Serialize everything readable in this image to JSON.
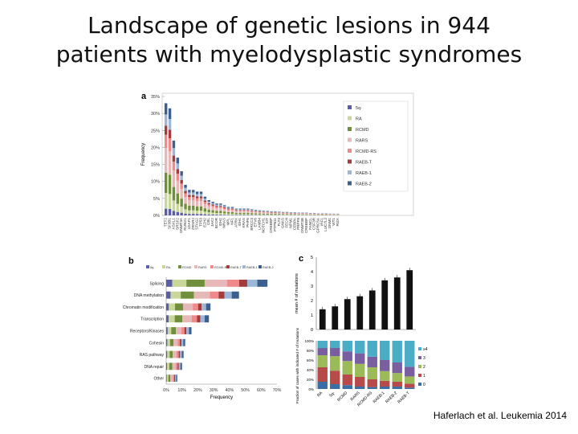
{
  "slide": {
    "title_line1": "Landscape of genetic lesions in 944",
    "title_line2": "patients with myelodysplastic syndromes",
    "caption": "Haferlach et al. Leukemia 2014"
  },
  "colors": {
    "5q-": "#5b5ea6",
    "RA": "#c9d89a",
    "RCMD": "#6f8f3a",
    "RARS": "#e6b8b7",
    "RCMD-RS": "#f08a8a",
    "RAEB-T": "#a23b3b",
    "RAEB-1": "#9db7d9",
    "RAEB-2": "#3b5f8f"
  },
  "chart_data": [
    {
      "panel": "a",
      "type": "bar",
      "stacked": true,
      "ylabel": "Frequency",
      "yticks": [
        "0%",
        "5%",
        "10%",
        "15%",
        "20%",
        "25%",
        "30%",
        "35%"
      ],
      "ylim": [
        0,
        35
      ],
      "legend": [
        "5q-",
        "RA",
        "RCMD",
        "RARS",
        "RCMD-RS",
        "RAEB-T",
        "RAEB-1",
        "RAEB-2"
      ],
      "legend_position": "top-right",
      "categories": [
        "TET2",
        "SF3B1",
        "ASXL1",
        "SRSF2",
        "DNMT3A",
        "RUNX1",
        "U2AF1",
        "ZRSR2",
        "STAG2",
        "TP53",
        "EZH2",
        "CBL",
        "JAK2",
        "BCOR",
        "IDH2",
        "NRAS",
        "MPL",
        "NF1",
        "ATRX",
        "IDH1",
        "KRAS",
        "PHF6",
        "BRCC3",
        "ETV6",
        "LAMB4",
        "NOTCH1",
        "KIT",
        "CREBBP",
        "PTPN11",
        "FLT3",
        "GNAS",
        "FECH",
        "NPM1",
        "CEBPA",
        "PRPF8",
        "DNMT3B",
        "CREBBP",
        "FANCL",
        "CSF3R",
        "GPRC5A",
        "IRF1",
        "LUC7L2",
        "DNM1",
        "WT1",
        "RIZA"
      ],
      "values": [
        33,
        31.5,
        22,
        17,
        13,
        9,
        7.5,
        7.5,
        7,
        7,
        5.5,
        4.5,
        4,
        3.5,
        3.5,
        3,
        2.5,
        2.5,
        2,
        2,
        2,
        2,
        1.8,
        1.6,
        1.5,
        1.4,
        1.3,
        1.2,
        1.2,
        1.1,
        1,
        1,
        0.9,
        0.9,
        0.8,
        0.8,
        0.8,
        0.7,
        0.7,
        0.6,
        0.6,
        0.6,
        0.5,
        0.5,
        0.5
      ]
    },
    {
      "panel": "b",
      "type": "bar",
      "orientation": "horizontal",
      "stacked": true,
      "xlabel": "Frequency",
      "xticks": [
        "0%",
        "10%",
        "20%",
        "30%",
        "40%",
        "50%",
        "60%",
        "70%"
      ],
      "xlim": [
        0,
        70
      ],
      "legend": [
        "5q-",
        "RA",
        "RCMD",
        "RARS",
        "RCMD-RS",
        "RAEB-T",
        "RAEB-1",
        "RAEB-2"
      ],
      "categories": [
        "Splicing",
        "DNA methylation",
        "Chromatin modification",
        "Transcription",
        "Receptors/Kinases",
        "Cohesin",
        "RAS pathway",
        "DNA repair",
        "Other"
      ],
      "totals": [
        64,
        46,
        28,
        27,
        16,
        12,
        11,
        10,
        7
      ]
    },
    {
      "panel": "c-top",
      "type": "bar",
      "ylabel": "mean # of mutations",
      "yticks": [
        "0",
        "1",
        "2",
        "3",
        "4",
        "5"
      ],
      "ylim": [
        0,
        5
      ],
      "categories": [
        "RA",
        "5q-",
        "RCMD",
        "RARS",
        "RCMD-RS",
        "RAEB-1",
        "RAEB-2",
        "RAEB-T"
      ],
      "values": [
        1.4,
        1.6,
        2.1,
        2.3,
        2.7,
        3.4,
        3.6,
        4.1
      ]
    },
    {
      "panel": "c-bottom",
      "type": "bar",
      "stacked": true,
      "ylabel": "Fraction of cases with indicated # of mutations",
      "yticks": [
        "0%",
        "20%",
        "40%",
        "60%",
        "80%",
        "100%"
      ],
      "ylim": [
        0,
        100
      ],
      "legend": [
        "≥4",
        "3",
        "2",
        "1",
        "0"
      ],
      "categories": [
        "RA",
        "5q-",
        "RCMD",
        "RARS",
        "RCMD-RS",
        "RAEB-1",
        "RAEB-2",
        "RAEB-T"
      ],
      "series": [
        {
          "name": "0",
          "values": [
            15,
            10,
            8,
            5,
            4,
            5,
            5,
            3
          ]
        },
        {
          "name": "1",
          "values": [
            30,
            28,
            22,
            20,
            16,
            12,
            10,
            8
          ]
        },
        {
          "name": "2",
          "values": [
            25,
            30,
            28,
            27,
            25,
            20,
            18,
            15
          ]
        },
        {
          "name": "3",
          "values": [
            15,
            17,
            20,
            22,
            22,
            23,
            22,
            20
          ]
        },
        {
          "name": "≥4",
          "values": [
            15,
            15,
            22,
            26,
            33,
            40,
            45,
            54
          ]
        }
      ]
    }
  ]
}
